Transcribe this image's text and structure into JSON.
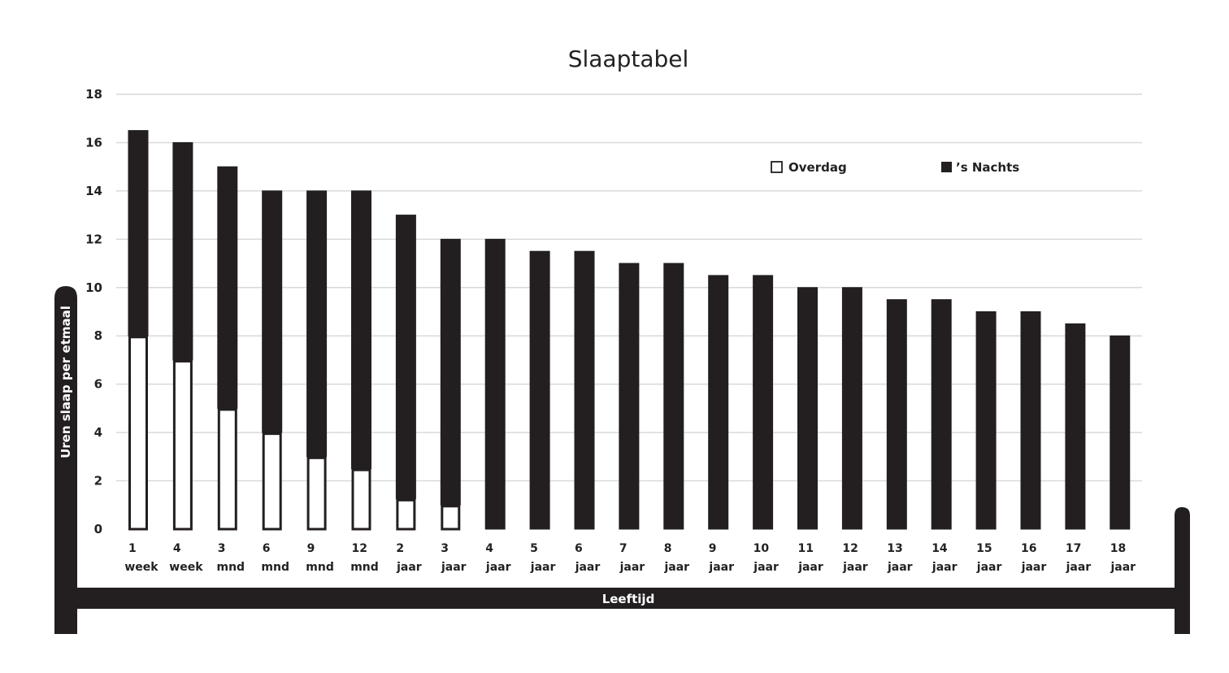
{
  "chart_data": {
    "type": "bar",
    "stacked": true,
    "title": "Slaaptabel",
    "xlabel": "Leeftijd",
    "ylabel": "Uren slaap per etmaal",
    "ylim": [
      0,
      18
    ],
    "yticks": [
      0,
      2,
      4,
      6,
      8,
      10,
      12,
      14,
      16,
      18
    ],
    "grid": true,
    "legend_position": "top-right",
    "categories": [
      [
        "1",
        "week"
      ],
      [
        "4",
        "week"
      ],
      [
        "3",
        "mnd"
      ],
      [
        "6",
        "mnd"
      ],
      [
        "9",
        "mnd"
      ],
      [
        "12",
        "mnd"
      ],
      [
        "2",
        "jaar"
      ],
      [
        "3",
        "jaar"
      ],
      [
        "4",
        "jaar"
      ],
      [
        "5",
        "jaar"
      ],
      [
        "6",
        "jaar"
      ],
      [
        "7",
        "jaar"
      ],
      [
        "8",
        "jaar"
      ],
      [
        "9",
        "jaar"
      ],
      [
        "10",
        "jaar"
      ],
      [
        "11",
        "jaar"
      ],
      [
        "12",
        "jaar"
      ],
      [
        "13",
        "jaar"
      ],
      [
        "14",
        "jaar"
      ],
      [
        "15",
        "jaar"
      ],
      [
        "16",
        "jaar"
      ],
      [
        "17",
        "jaar"
      ],
      [
        "18",
        "jaar"
      ]
    ],
    "series": [
      {
        "name": "Overdag",
        "color": "#ffffff",
        "values": [
          8,
          7,
          5,
          4,
          3,
          2.5,
          1.25,
          1,
          0,
          0,
          0,
          0,
          0,
          0,
          0,
          0,
          0,
          0,
          0,
          0,
          0,
          0,
          0
        ]
      },
      {
        "name": "’s Nachts",
        "color": "#231f20",
        "values": [
          8.5,
          9,
          10,
          10,
          11,
          11.5,
          11.75,
          11,
          12,
          11.5,
          11.5,
          11,
          11,
          10.5,
          10.5,
          10,
          10,
          9.5,
          9.5,
          9,
          9,
          8.5,
          8
        ]
      }
    ]
  }
}
